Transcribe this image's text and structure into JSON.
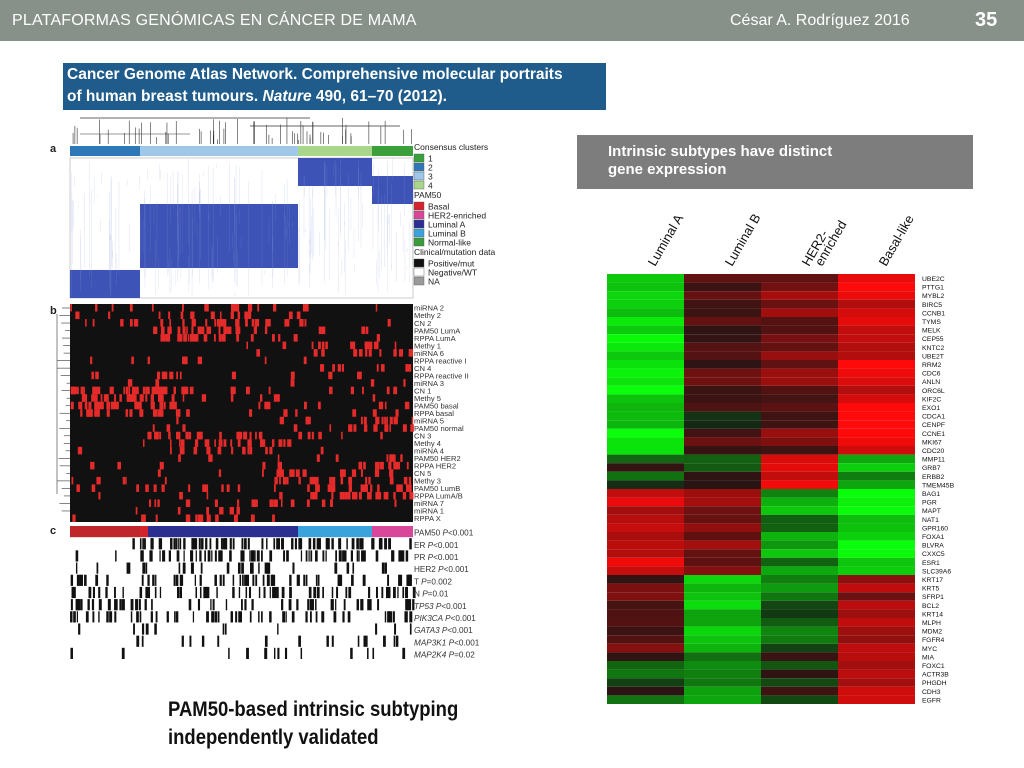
{
  "header": {
    "left_title": "PLATAFORMAS GENÓMICAS EN CÁNCER DE MAMA",
    "author_year": "César A. Rodríguez  2016",
    "slide_number": "35"
  },
  "citation": {
    "line1": "Cancer Genome Atlas Network. Comprehensive molecular portraits",
    "line2_pre": "of human breast tumours. ",
    "journal": "Nature",
    "volume": " 490",
    "pages": ", 61–70 (2012)."
  },
  "left_figure": {
    "panel_labels": [
      "a",
      "b",
      "c"
    ],
    "legend_consensus_title": "Consensus clusters",
    "consensus_items": [
      {
        "label": "1",
        "color": "#3ba03b"
      },
      {
        "label": "2",
        "color": "#2f78b8"
      },
      {
        "label": "3",
        "color": "#9ec7e8"
      },
      {
        "label": "4",
        "color": "#a8d68a"
      }
    ],
    "legend_pam50_title": "PAM50",
    "pam50_items": [
      {
        "label": "Basal",
        "color": "#d4232b"
      },
      {
        "label": "HER2-enriched",
        "color": "#d9479b"
      },
      {
        "label": "Luminal A",
        "color": "#2b2f8f"
      },
      {
        "label": "Luminal B",
        "color": "#3aa3db"
      },
      {
        "label": "Normal-like",
        "color": "#3a9c3a"
      }
    ],
    "legend_clinical_title": "Clinical/mutation data",
    "clinical_items": [
      {
        "label": "Positive/mut",
        "color": "#111111"
      },
      {
        "label": "Negative/WT",
        "color": "#ffffff"
      },
      {
        "label": "NA",
        "color": "#9a9a9a"
      }
    ],
    "panel_b_rows": [
      "miRNA 2",
      "Methy 2",
      "CN 2",
      "PAM50 LumA",
      "RPPA LumA",
      "Methy 1",
      "miRNA 6",
      "RPPA reactive I",
      "CN 4",
      "RPPA reactive II",
      "miRNA 3",
      "CN 1",
      "Methy 5",
      "PAM50 basal",
      "RPPA basal",
      "miRNA 5",
      "PAM50 normal",
      "CN 3",
      "Methy 4",
      "miRNA 4",
      "PAM50 HER2",
      "RPPA HER2",
      "CN 5",
      "Methy 3",
      "PAM50 LumB",
      "RPPA LumA/B",
      "miRNA 7",
      "miRNA 1",
      "RPPA X"
    ],
    "panel_c_rows": [
      {
        "name": "PAM50",
        "p": "P<0.001",
        "italic": false
      },
      {
        "name": "ER",
        "p": "P<0.001",
        "italic": false
      },
      {
        "name": "PR",
        "p": "P<0.001",
        "italic": false
      },
      {
        "name": "HER2",
        "p": "P<0.001",
        "italic": false
      },
      {
        "name": "T",
        "p": "P=0.002",
        "italic": false
      },
      {
        "name": "N",
        "p": "P=0.01",
        "italic": false
      },
      {
        "name": "TP53",
        "p": "P<0.001",
        "italic": true
      },
      {
        "name": "PIK3CA",
        "p": "P<0.001",
        "italic": true
      },
      {
        "name": "GATA3",
        "p": "P<0.001",
        "italic": true
      },
      {
        "name": "MAP3K1",
        "p": "P<0.001",
        "italic": true
      },
      {
        "name": "MAP2K4",
        "p": "P=0.02",
        "italic": true
      }
    ]
  },
  "right_figure": {
    "title_line1": "Intrinsic subtypes have distinct",
    "title_line2": "gene expression",
    "columns": [
      "Luminal A",
      "Luminal B",
      "HER2-\nenriched",
      "Basal-like"
    ],
    "genes": [
      "UBE2C",
      "PTTG1",
      "MYBL2",
      "BIRC5",
      "CCNB1",
      "TYMS",
      "MELK",
      "CEP55",
      "KNTC2",
      "UBE2T",
      "RRM2",
      "CDC6",
      "ANLN",
      "ORC6L",
      "KIF2C",
      "EXO1",
      "CDCA1",
      "CENPF",
      "CCNE1",
      "MKI67",
      "CDC20",
      "MMP11",
      "GRB7",
      "ERBB2",
      "TMEM45B",
      "BAG1",
      "PGR",
      "MAPT",
      "NAT1",
      "GPR160",
      "FOXA1",
      "BLVRA",
      "CXXC5",
      "ESR1",
      "SLC39A6",
      "KRT17",
      "KRT5",
      "SFRP1",
      "BCL2",
      "KRT14",
      "MLPH",
      "MDM2",
      "FGFR4",
      "MYC",
      "MIA",
      "FOXC1",
      "ACTR3B",
      "PHGDH",
      "CDH3",
      "EGFR"
    ]
  },
  "caption": {
    "line1": "PAM50-based intrinsic subtyping",
    "line2": "independently validated"
  }
}
